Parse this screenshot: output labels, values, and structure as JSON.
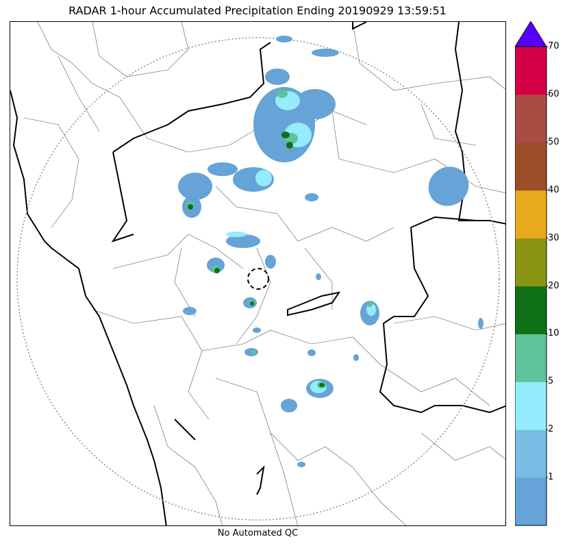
{
  "title": "RADAR 1-hour Accumulated Precipitation Ending 20190929 13:59:51",
  "footer": "No Automated QC",
  "colorbar": {
    "extend": "max",
    "extend_color": "#5500ff",
    "bins": [
      {
        "from": 0,
        "to": 1,
        "color": "#66a3d6"
      },
      {
        "from": 1,
        "to": 2,
        "color": "#78bde3"
      },
      {
        "from": 2,
        "to": 5,
        "color": "#94ecfc"
      },
      {
        "from": 5,
        "to": 10,
        "color": "#5ec29a"
      },
      {
        "from": 10,
        "to": 20,
        "color": "#0f7017"
      },
      {
        "from": 20,
        "to": 30,
        "color": "#8c9414"
      },
      {
        "from": 30,
        "to": 40,
        "color": "#e8aa1c"
      },
      {
        "from": 40,
        "to": 50,
        "color": "#9c4e28"
      },
      {
        "from": 50,
        "to": 60,
        "color": "#a84c44"
      },
      {
        "from": 60,
        "to": 70,
        "color": "#d40045"
      }
    ],
    "tick_labels": [
      "1",
      "2",
      "5",
      "10",
      "20",
      "30",
      "40",
      "50",
      "60",
      "70"
    ]
  },
  "map": {
    "range_ring": "dotted",
    "radar_site_marker": "dashed-circle"
  }
}
